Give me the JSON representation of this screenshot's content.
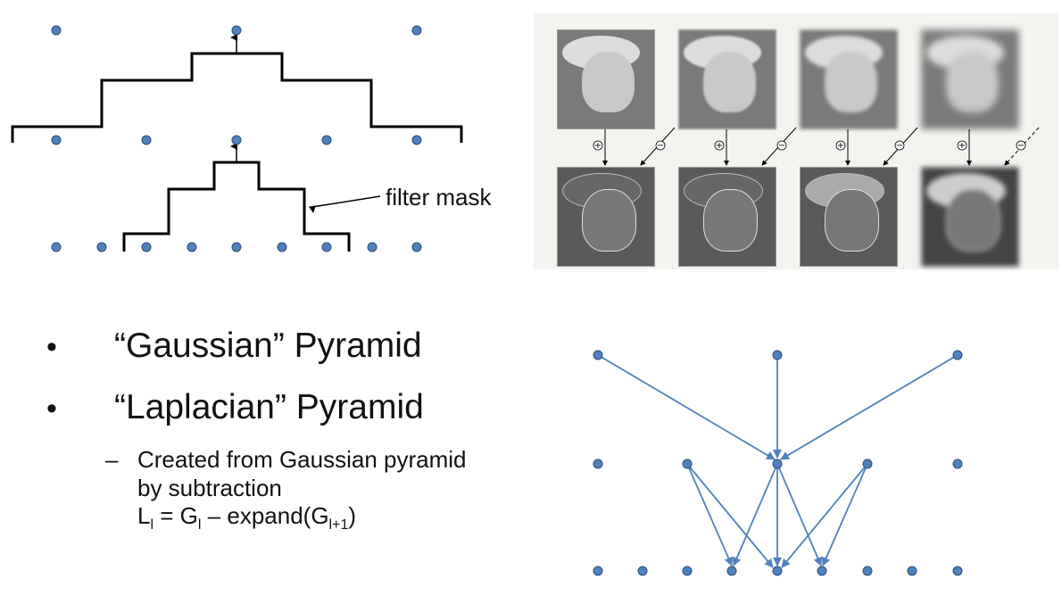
{
  "filter_label": "filter mask",
  "bullets": [
    {
      "label": "“Gaussian” Pyramid"
    },
    {
      "label": "“Laplacian” Pyramid"
    }
  ],
  "sub_bullet": {
    "dash": "–",
    "line1": "Created from Gaussian pyramid",
    "line2": "by subtraction",
    "formula_L": "L",
    "formula_l1": "l",
    "formula_mid": " = G",
    "formula_l2": "l",
    "formula_expand": " – expand(G",
    "formula_l3": "l+1",
    "formula_close": ")"
  },
  "photo_panel": {
    "operator_plus": "+",
    "operator_minus": "−"
  },
  "colors": {
    "node": "#4f81bd",
    "arrow": "#4f81bd",
    "line": "#000000"
  }
}
